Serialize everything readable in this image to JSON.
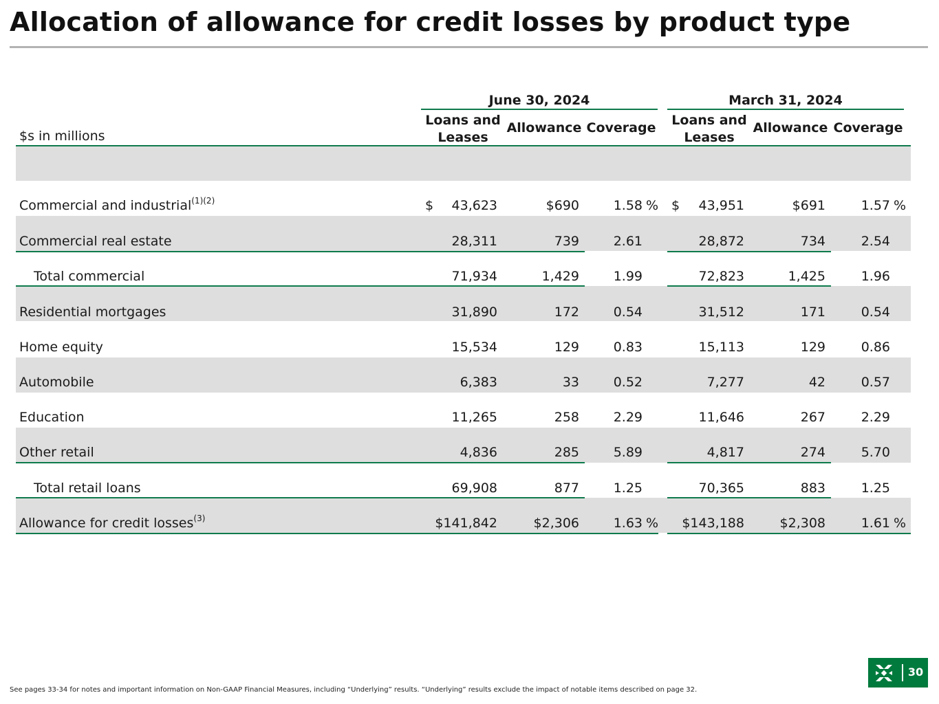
{
  "title": "Allocation of allowance for credit losses by product type",
  "units_label": "$s in millions",
  "periods": [
    {
      "label": "June 30, 2024",
      "col_loans": "Loans and Leases",
      "col_allowance": "Allowance",
      "col_coverage": "Coverage"
    },
    {
      "label": "March 31, 2024",
      "col_loans": "Loans and Leases",
      "col_allowance": "Allowance",
      "col_coverage": "Coverage"
    }
  ],
  "rows": [
    {
      "label": "Commercial and industrial",
      "sup": "(1)(2)",
      "cur": "$",
      "cur2": "$",
      "jun_loans": "43,623",
      "jun_allow": "$690",
      "jun_cov": "1.58",
      "pct": "%",
      "mar_loans": "43,951",
      "mar_allow": "$691",
      "mar_cov": "1.57",
      "pct2": "%"
    },
    {
      "label": "Commercial real estate",
      "jun_loans": "28,311",
      "jun_allow": "739",
      "jun_cov": "2.61",
      "mar_loans": "28,872",
      "mar_allow": "734",
      "mar_cov": "2.54"
    },
    {
      "label": "Total commercial",
      "jun_loans": "71,934",
      "jun_allow": "1,429",
      "jun_cov": "1.99",
      "mar_loans": "72,823",
      "mar_allow": "1,425",
      "mar_cov": "1.96"
    },
    {
      "label": "Residential mortgages",
      "jun_loans": "31,890",
      "jun_allow": "172",
      "jun_cov": "0.54",
      "mar_loans": "31,512",
      "mar_allow": "171",
      "mar_cov": "0.54"
    },
    {
      "label": "Home equity",
      "jun_loans": "15,534",
      "jun_allow": "129",
      "jun_cov": "0.83",
      "mar_loans": "15,113",
      "mar_allow": "129",
      "mar_cov": "0.86"
    },
    {
      "label": "Automobile",
      "jun_loans": "6,383",
      "jun_allow": "33",
      "jun_cov": "0.52",
      "mar_loans": "7,277",
      "mar_allow": "42",
      "mar_cov": "0.57"
    },
    {
      "label": "Education",
      "jun_loans": "11,265",
      "jun_allow": "258",
      "jun_cov": "2.29",
      "mar_loans": "11,646",
      "mar_allow": "267",
      "mar_cov": "2.29"
    },
    {
      "label": "Other retail",
      "jun_loans": "4,836",
      "jun_allow": "285",
      "jun_cov": "5.89",
      "mar_loans": "4,817",
      "mar_allow": "274",
      "mar_cov": "5.70"
    },
    {
      "label": "Total retail loans",
      "jun_loans": "69,908",
      "jun_allow": "877",
      "jun_cov": "1.25",
      "mar_loans": "70,365",
      "mar_allow": "883",
      "mar_cov": "1.25"
    },
    {
      "label": "Allowance for credit losses",
      "sup": "(3)",
      "jun_loans": "$141,842",
      "jun_allow": "$2,306",
      "jun_cov": "1.63",
      "pct": "%",
      "mar_loans": "$143,188",
      "mar_allow": "$2,308",
      "mar_cov": "1.61",
      "pct2": "%"
    }
  ],
  "page_number": "30",
  "brand_color": "#007a3d",
  "accent_line_color": "#0e7a4c",
  "band_color": "#dedede",
  "footnote": "See pages 33-34 for notes and important information on Non-GAAP Financial Measures, including “Underlying” results. “Underlying” results exclude the impact of notable items described on page 32."
}
